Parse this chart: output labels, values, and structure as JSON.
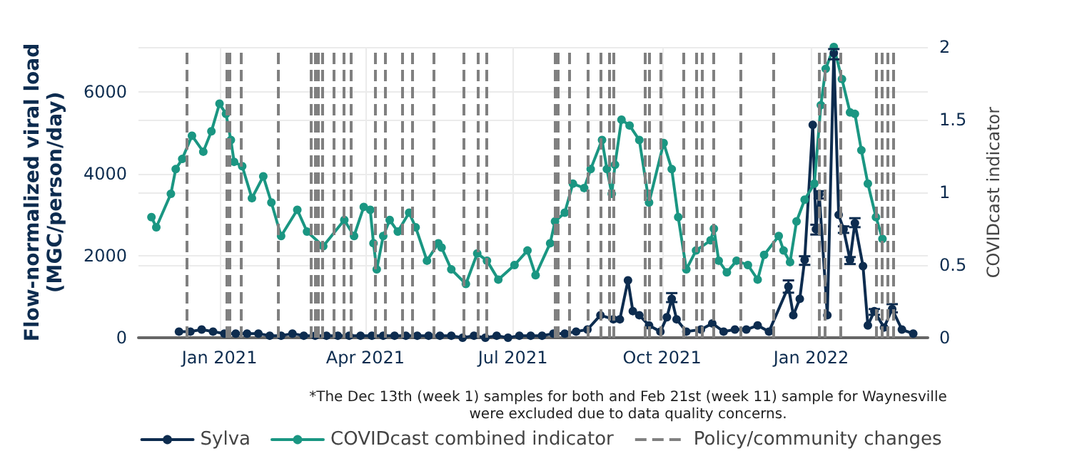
{
  "chart_data": {
    "type": "line",
    "ylabel": "Flow-normalized viral load\n(MGC/person/day)",
    "y2label": "COVIDcast indicator",
    "annotations": [
      "*The Dec 13th (week 1) samples for both and Feb 21st (week 11) sample for Waynesville\nwere excluded due to data quality concerns."
    ],
    "xlim": [
      "2020-11-12",
      "2022-03-14"
    ],
    "xticks": [
      {
        "value": "2021-01-01",
        "label": "Jan 2021"
      },
      {
        "value": "2021-04-01",
        "label": "Apr 2021"
      },
      {
        "value": "2021-07-01",
        "label": "Jul 2021"
      },
      {
        "value": "2021-10-01",
        "label": "Oct 2021"
      },
      {
        "value": "2022-01-01",
        "label": "Jan 2022"
      }
    ],
    "ylim": [
      0,
      7100
    ],
    "yticks": [
      0,
      2000,
      4000,
      6000
    ],
    "y2lim": [
      0,
      2
    ],
    "y2ticks": [
      0,
      0.5,
      1,
      1.5,
      2
    ],
    "grid": true,
    "legend": "bottom",
    "marker": "circle",
    "line_style": "solid",
    "series": [
      {
        "name": "Sylva",
        "color": "#0d2c4f",
        "x": [
          "2020-12-07",
          "2020-12-14",
          "2020-12-21",
          "2020-12-28",
          "2021-01-04",
          "2021-01-11",
          "2021-01-18",
          "2021-01-25",
          "2021-02-01",
          "2021-02-08",
          "2021-02-15",
          "2021-02-22",
          "2021-03-01",
          "2021-03-08",
          "2021-03-15",
          "2021-03-22",
          "2021-03-29",
          "2021-04-05",
          "2021-04-12",
          "2021-04-19",
          "2021-04-26",
          "2021-05-03",
          "2021-05-10",
          "2021-05-17",
          "2021-05-24",
          "2021-05-31",
          "2021-06-07",
          "2021-06-14",
          "2021-06-21",
          "2021-06-28",
          "2021-07-05",
          "2021-07-12",
          "2021-07-19",
          "2021-07-26",
          "2021-08-02",
          "2021-08-09",
          "2021-08-16",
          "2021-08-24",
          "2021-09-01",
          "2021-09-05",
          "2021-09-10",
          "2021-09-13",
          "2021-09-17",
          "2021-09-23",
          "2021-09-30",
          "2021-10-04",
          "2021-10-07",
          "2021-10-10",
          "2021-10-16",
          "2021-10-25",
          "2021-11-01",
          "2021-11-08",
          "2021-11-15",
          "2021-11-22",
          "2021-11-29",
          "2021-12-06",
          "2021-12-18",
          "2021-12-21",
          "2021-12-25",
          "2021-12-28",
          "2022-01-02",
          "2022-01-04",
          "2022-01-06",
          "2022-01-11",
          "2022-01-15",
          "2022-01-18",
          "2022-01-21",
          "2022-01-25",
          "2022-01-28",
          "2022-02-02",
          "2022-02-05",
          "2022-02-09",
          "2022-02-15",
          "2022-02-20",
          "2022-02-26",
          "2022-03-05"
        ],
        "values": [
          150,
          150,
          200,
          150,
          100,
          100,
          100,
          100,
          50,
          50,
          100,
          50,
          50,
          50,
          50,
          50,
          50,
          50,
          50,
          50,
          50,
          50,
          50,
          50,
          50,
          0,
          50,
          0,
          50,
          0,
          50,
          50,
          50,
          100,
          100,
          150,
          200,
          550,
          450,
          450,
          1400,
          650,
          550,
          300,
          150,
          500,
          950,
          450,
          150,
          200,
          350,
          150,
          200,
          200,
          300,
          150,
          1250,
          550,
          950,
          1900,
          5200,
          2650,
          3500,
          550,
          6950,
          3000,
          2650,
          1900,
          2800,
          1750,
          300,
          650,
          250,
          700,
          200,
          100
        ],
        "errors": [
          null,
          null,
          null,
          null,
          null,
          null,
          null,
          null,
          null,
          null,
          null,
          null,
          null,
          null,
          null,
          null,
          null,
          null,
          null,
          null,
          null,
          null,
          null,
          null,
          null,
          null,
          null,
          null,
          null,
          null,
          null,
          null,
          null,
          null,
          null,
          null,
          null,
          null,
          null,
          null,
          null,
          null,
          null,
          null,
          null,
          null,
          [
            870,
            1090
          ],
          null,
          null,
          null,
          null,
          null,
          null,
          null,
          null,
          null,
          [
            1100,
            1400
          ],
          null,
          null,
          [
            1780,
            1990
          ],
          null,
          [
            2520,
            2760
          ],
          [
            3400,
            3580
          ],
          null,
          [
            6800,
            7050
          ],
          null,
          [
            2560,
            2720
          ],
          [
            1800,
            1970
          ],
          [
            2700,
            2920
          ],
          null,
          null,
          [
            560,
            700
          ],
          null,
          [
            620,
            820
          ],
          null,
          null
        ]
      },
      {
        "name": "COVIDcast combined indicator",
        "color": "#1a9682",
        "axis": "y2",
        "x": [
          "2020-11-20",
          "2020-11-23",
          "2020-12-02",
          "2020-12-05",
          "2020-12-09",
          "2020-12-15",
          "2020-12-22",
          "2020-12-27",
          "2021-01-01",
          "2021-01-05",
          "2021-01-08",
          "2021-01-10",
          "2021-01-15",
          "2021-01-21",
          "2021-01-28",
          "2021-02-02",
          "2021-02-08",
          "2021-02-18",
          "2021-02-24",
          "2021-03-06",
          "2021-03-19",
          "2021-03-25",
          "2021-03-31",
          "2021-04-04",
          "2021-04-06",
          "2021-04-08",
          "2021-04-12",
          "2021-04-16",
          "2021-04-21",
          "2021-04-28",
          "2021-05-02",
          "2021-05-09",
          "2021-05-16",
          "2021-05-18",
          "2021-05-24",
          "2021-06-02",
          "2021-06-09",
          "2021-06-15",
          "2021-06-22",
          "2021-07-02",
          "2021-07-10",
          "2021-07-15",
          "2021-07-24",
          "2021-07-27",
          "2021-08-02",
          "2021-08-07",
          "2021-08-14",
          "2021-08-18",
          "2021-08-25",
          "2021-08-28",
          "2021-08-31",
          "2021-09-02",
          "2021-09-06",
          "2021-09-11",
          "2021-09-17",
          "2021-09-23",
          "2021-10-02",
          "2021-10-07",
          "2021-10-11",
          "2021-10-16",
          "2021-10-22",
          "2021-10-31",
          "2021-11-02",
          "2021-11-05",
          "2021-11-10",
          "2021-11-16",
          "2021-11-23",
          "2021-11-29",
          "2021-12-03",
          "2021-12-12",
          "2021-12-15",
          "2021-12-19",
          "2021-12-23",
          "2021-12-28",
          "2022-01-03",
          "2022-01-07",
          "2022-01-10",
          "2022-01-15",
          "2022-01-20",
          "2022-01-25",
          "2022-01-28",
          "2022-02-01",
          "2022-02-05",
          "2022-02-10",
          "2022-02-14"
        ],
        "values": [
          0.83,
          0.76,
          0.99,
          1.16,
          1.23,
          1.39,
          1.28,
          1.42,
          1.61,
          1.54,
          1.36,
          1.21,
          1.18,
          0.96,
          1.11,
          0.93,
          0.7,
          0.88,
          0.73,
          0.63,
          0.81,
          0.7,
          0.9,
          0.88,
          0.65,
          0.47,
          0.7,
          0.81,
          0.73,
          0.86,
          0.76,
          0.53,
          0.65,
          0.62,
          0.47,
          0.37,
          0.58,
          0.53,
          0.4,
          0.5,
          0.6,
          0.43,
          0.65,
          0.8,
          0.86,
          1.06,
          1.03,
          1.16,
          1.36,
          1.16,
          0.99,
          1.19,
          1.5,
          1.46,
          1.36,
          0.93,
          1.34,
          1.16,
          0.83,
          0.47,
          0.6,
          0.67,
          0.75,
          0.53,
          0.45,
          0.53,
          0.5,
          0.4,
          0.57,
          0.7,
          0.6,
          0.52,
          0.8,
          0.95,
          1.06,
          1.6,
          1.85,
          2.0,
          1.78,
          1.55,
          1.54,
          1.29,
          1.06,
          0.83,
          0.68
        ]
      }
    ],
    "ref_lines": [
      {
        "axis": "x",
        "value": "2020-12-12",
        "label": "Policy/community changes",
        "color": "#808080",
        "line_style": "dashed"
      },
      {
        "axis": "x",
        "value": "2021-01-05",
        "color": "#808080",
        "line_style": "dashed"
      },
      {
        "axis": "x",
        "value": "2021-01-07",
        "color": "#808080",
        "line_style": "dashed"
      },
      {
        "axis": "x",
        "value": "2021-01-14",
        "color": "#808080",
        "line_style": "dashed"
      },
      {
        "axis": "x",
        "value": "2021-02-06",
        "color": "#808080",
        "line_style": "dashed"
      },
      {
        "axis": "x",
        "value": "2021-02-26",
        "color": "#808080",
        "line_style": "dashed"
      },
      {
        "axis": "x",
        "value": "2021-03-01",
        "color": "#808080",
        "line_style": "dashed"
      },
      {
        "axis": "x",
        "value": "2021-03-03",
        "color": "#808080",
        "line_style": "dashed"
      },
      {
        "axis": "x",
        "value": "2021-03-05",
        "color": "#808080",
        "line_style": "dashed"
      },
      {
        "axis": "x",
        "value": "2021-03-12",
        "color": "#808080",
        "line_style": "dashed"
      },
      {
        "axis": "x",
        "value": "2021-03-19",
        "color": "#808080",
        "line_style": "dashed"
      },
      {
        "axis": "x",
        "value": "2021-03-23",
        "color": "#808080",
        "line_style": "dashed"
      },
      {
        "axis": "x",
        "value": "2021-04-07",
        "color": "#808080",
        "line_style": "dashed"
      },
      {
        "axis": "x",
        "value": "2021-04-13",
        "color": "#808080",
        "line_style": "dashed"
      },
      {
        "axis": "x",
        "value": "2021-04-24",
        "color": "#808080",
        "line_style": "dashed"
      },
      {
        "axis": "x",
        "value": "2021-04-30",
        "color": "#808080",
        "line_style": "dashed"
      },
      {
        "axis": "x",
        "value": "2021-05-13",
        "color": "#808080",
        "line_style": "dashed"
      },
      {
        "axis": "x",
        "value": "2021-06-01",
        "color": "#808080",
        "line_style": "dashed"
      },
      {
        "axis": "x",
        "value": "2021-06-09",
        "color": "#808080",
        "line_style": "dashed"
      },
      {
        "axis": "x",
        "value": "2021-06-15",
        "color": "#808080",
        "line_style": "dashed"
      },
      {
        "axis": "x",
        "value": "2021-07-27",
        "color": "#808080",
        "line_style": "dashed"
      },
      {
        "axis": "x",
        "value": "2021-07-29",
        "color": "#808080",
        "line_style": "dashed"
      },
      {
        "axis": "x",
        "value": "2021-08-05",
        "color": "#808080",
        "line_style": "dashed"
      },
      {
        "axis": "x",
        "value": "2021-08-16",
        "color": "#808080",
        "line_style": "dashed"
      },
      {
        "axis": "x",
        "value": "2021-08-24",
        "color": "#808080",
        "line_style": "dashed"
      },
      {
        "axis": "x",
        "value": "2021-08-29",
        "color": "#808080",
        "line_style": "dashed"
      },
      {
        "axis": "x",
        "value": "2021-09-01",
        "color": "#808080",
        "line_style": "dashed"
      },
      {
        "axis": "x",
        "value": "2021-09-20",
        "color": "#808080",
        "line_style": "dashed"
      },
      {
        "axis": "x",
        "value": "2021-09-23",
        "color": "#808080",
        "line_style": "dashed"
      },
      {
        "axis": "x",
        "value": "2021-09-30",
        "color": "#808080",
        "line_style": "dashed"
      },
      {
        "axis": "x",
        "value": "2021-10-14",
        "color": "#808080",
        "line_style": "dashed"
      },
      {
        "axis": "x",
        "value": "2021-10-22",
        "color": "#808080",
        "line_style": "dashed"
      },
      {
        "axis": "x",
        "value": "2021-10-26",
        "color": "#808080",
        "line_style": "dashed"
      },
      {
        "axis": "x",
        "value": "2021-11-02",
        "color": "#808080",
        "line_style": "dashed"
      },
      {
        "axis": "x",
        "value": "2021-11-18",
        "color": "#808080",
        "line_style": "dashed"
      },
      {
        "axis": "x",
        "value": "2021-12-09",
        "color": "#808080",
        "line_style": "dashed"
      },
      {
        "axis": "x",
        "value": "2022-01-06",
        "color": "#808080",
        "line_style": "dashed"
      },
      {
        "axis": "x",
        "value": "2022-01-09",
        "color": "#808080",
        "line_style": "dashed"
      },
      {
        "axis": "x",
        "value": "2022-01-19",
        "color": "#808080",
        "line_style": "dashed"
      },
      {
        "axis": "x",
        "value": "2022-02-10",
        "color": "#808080",
        "line_style": "dashed"
      },
      {
        "axis": "x",
        "value": "2022-02-14",
        "color": "#808080",
        "line_style": "dashed"
      },
      {
        "axis": "x",
        "value": "2022-02-17",
        "color": "#808080",
        "line_style": "dashed"
      },
      {
        "axis": "x",
        "value": "2022-02-21",
        "color": "#808080",
        "line_style": "dashed"
      }
    ]
  }
}
